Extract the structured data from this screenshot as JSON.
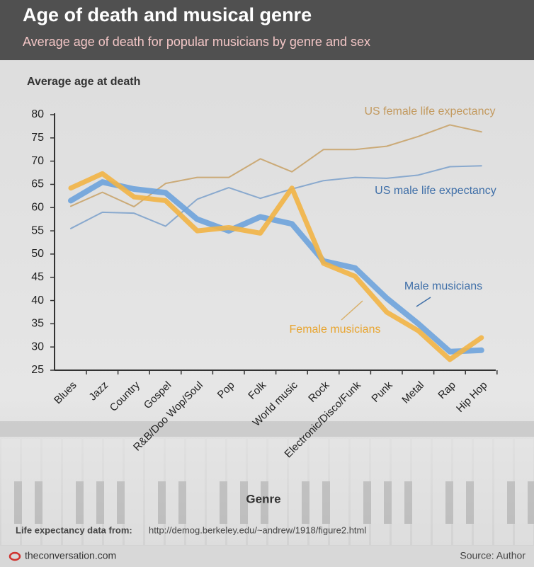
{
  "header": {
    "title": "Age of death and musical genre",
    "subtitle": "Average age of death for popular musicians by genre and sex"
  },
  "chart_data": {
    "type": "line",
    "ylabel": "Average age at death",
    "xlabel": "Genre",
    "categories": [
      "Blues",
      "Jazz",
      "Country",
      "Gospel",
      "R&B/Doo Wop/Soul",
      "Pop",
      "Folk",
      "World music",
      "Rock",
      "Electronic/Disco/Funk",
      "Punk",
      "Metal",
      "Rap",
      "Hip Hop"
    ],
    "series": [
      {
        "name": "US female life expectancy",
        "color": "#c9a46b",
        "values": [
          60.3,
          63.3,
          60.2,
          65.2,
          66.5,
          66.5,
          70.5,
          67.7,
          72.5,
          72.5,
          73.2,
          75.3,
          77.8,
          76.3
        ]
      },
      {
        "name": "US male life expectancy",
        "color": "#7fa3cc",
        "values": [
          55.5,
          59,
          58.8,
          56,
          61.8,
          64.3,
          62,
          64,
          65.8,
          66.5,
          66.3,
          67,
          68.8,
          69
        ]
      },
      {
        "name": "Male musicians",
        "color": "#6ea3dc",
        "values": [
          61.5,
          65.5,
          64,
          63.2,
          57.5,
          55,
          58,
          56.5,
          48.5,
          47,
          40.5,
          35,
          29,
          29.3
        ]
      },
      {
        "name": "Female musicians",
        "color": "#f2b445",
        "values": [
          64.2,
          67.3,
          62.3,
          61.5,
          55,
          55.7,
          54.5,
          64.2,
          48,
          45.2,
          37.5,
          33.5,
          27.3,
          32
        ]
      }
    ],
    "ylim": [
      25,
      80
    ],
    "yticks": [
      25,
      30,
      35,
      40,
      45,
      50,
      55,
      60,
      65,
      70,
      75,
      80
    ]
  },
  "footer": {
    "note_label": "Life expectancy data from:",
    "note_url": "http://demog.berkeley.edu/~andrew/1918/figure2.html",
    "site": "theconversation.com",
    "source": "Source: Author"
  }
}
